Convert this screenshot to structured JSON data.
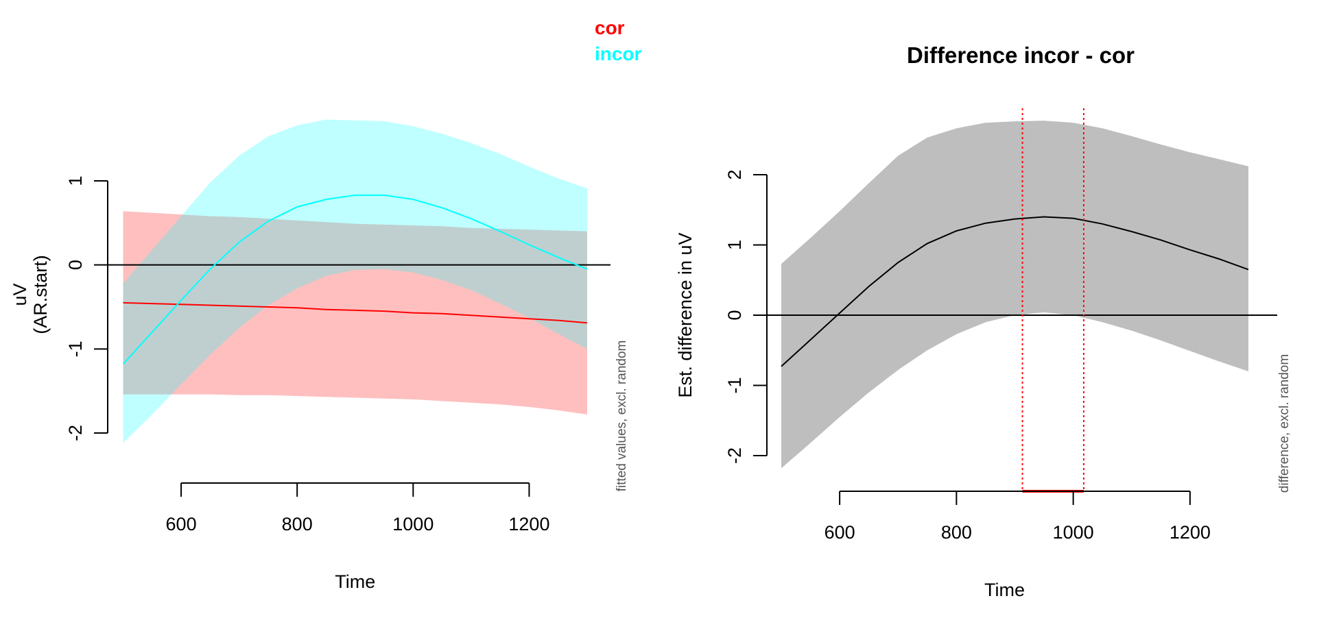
{
  "chart_data": [
    {
      "type": "line",
      "title": "",
      "xlabel": "Time",
      "ylabel": [
        "uV",
        "(AR.start)"
      ],
      "side_note": "fitted values, excl. random",
      "xlim": [
        500,
        1300
      ],
      "ylim": [
        -2,
        1
      ],
      "x_ticks": [
        600,
        800,
        1000,
        1200
      ],
      "y_ticks": [
        -2,
        -1,
        0,
        1
      ],
      "x_tick_labels": [
        "600",
        "800",
        "1000",
        "1200"
      ],
      "y_tick_labels": [
        "-2",
        "-1",
        "0",
        "1"
      ],
      "hline": 0,
      "legend": {
        "placement": "top-right",
        "entries": [
          {
            "label": "cor",
            "color": "#ff0000"
          },
          {
            "label": "incor",
            "color": "#00ffff"
          }
        ]
      },
      "x": [
        500,
        550,
        600,
        650,
        700,
        750,
        800,
        850,
        900,
        950,
        1000,
        1050,
        1100,
        1150,
        1200,
        1250,
        1300
      ],
      "series": [
        {
          "name": "cor",
          "color": "#ff0000",
          "band_color": "#ffbfbf",
          "values": [
            -0.45,
            -0.46,
            -0.47,
            -0.48,
            -0.49,
            -0.5,
            -0.51,
            -0.53,
            -0.54,
            -0.55,
            -0.57,
            -0.58,
            -0.6,
            -0.62,
            -0.64,
            -0.66,
            -0.69
          ],
          "lower": [
            -1.54,
            -1.54,
            -1.54,
            -1.54,
            -1.55,
            -1.55,
            -1.56,
            -1.57,
            -1.58,
            -1.59,
            -1.6,
            -1.62,
            -1.64,
            -1.66,
            -1.69,
            -1.73,
            -1.78
          ],
          "upper": [
            0.64,
            0.62,
            0.6,
            0.58,
            0.57,
            0.55,
            0.53,
            0.51,
            0.49,
            0.48,
            0.47,
            0.46,
            0.44,
            0.43,
            0.42,
            0.41,
            0.4
          ]
        },
        {
          "name": "incor",
          "color": "#00ffff",
          "band_color": "#bfffff",
          "values": [
            -1.18,
            -0.8,
            -0.42,
            -0.05,
            0.27,
            0.52,
            0.69,
            0.78,
            0.83,
            0.83,
            0.78,
            0.68,
            0.55,
            0.4,
            0.24,
            0.09,
            -0.05
          ],
          "lower": [
            -2.12,
            -1.78,
            -1.42,
            -1.07,
            -0.75,
            -0.48,
            -0.28,
            -0.13,
            -0.06,
            -0.05,
            -0.09,
            -0.18,
            -0.3,
            -0.46,
            -0.63,
            -0.82,
            -1.0
          ],
          "upper": [
            -0.22,
            0.18,
            0.58,
            0.98,
            1.3,
            1.53,
            1.66,
            1.73,
            1.72,
            1.71,
            1.65,
            1.56,
            1.45,
            1.32,
            1.17,
            1.03,
            0.91
          ]
        }
      ]
    },
    {
      "type": "line",
      "title": "Difference incor - cor",
      "xlabel": "Time",
      "ylabel": "Est. difference in uV",
      "side_note": "difference, excl. random",
      "xlim": [
        500,
        1300
      ],
      "ylim": [
        -2,
        2
      ],
      "x_ticks": [
        600,
        800,
        1000,
        1200
      ],
      "y_ticks": [
        -2,
        -1,
        0,
        1,
        2
      ],
      "x_tick_labels": [
        "600",
        "800",
        "1000",
        "1200"
      ],
      "y_tick_labels": [
        "-2",
        "-1",
        "0",
        "1",
        "2"
      ],
      "hline": 0,
      "x": [
        500,
        550,
        600,
        650,
        700,
        750,
        800,
        850,
        900,
        950,
        1000,
        1050,
        1100,
        1150,
        1200,
        1250,
        1300
      ],
      "series": [
        {
          "name": "difference",
          "color": "#000000",
          "band_color": "#bebebe",
          "values": [
            -0.73,
            -0.35,
            0.03,
            0.41,
            0.75,
            1.02,
            1.2,
            1.31,
            1.37,
            1.4,
            1.38,
            1.3,
            1.19,
            1.07,
            0.93,
            0.8,
            0.65
          ],
          "lower": [
            -2.18,
            -1.82,
            -1.45,
            -1.1,
            -0.78,
            -0.5,
            -0.27,
            -0.1,
            0.0,
            0.04,
            0.0,
            -0.1,
            -0.22,
            -0.36,
            -0.51,
            -0.66,
            -0.8
          ],
          "upper": [
            0.73,
            1.1,
            1.48,
            1.88,
            2.27,
            2.53,
            2.66,
            2.74,
            2.76,
            2.77,
            2.74,
            2.66,
            2.55,
            2.43,
            2.32,
            2.22,
            2.12
          ]
        }
      ],
      "significant_interval": {
        "start": 913,
        "end": 1018,
        "color": "#ff0000"
      }
    }
  ]
}
